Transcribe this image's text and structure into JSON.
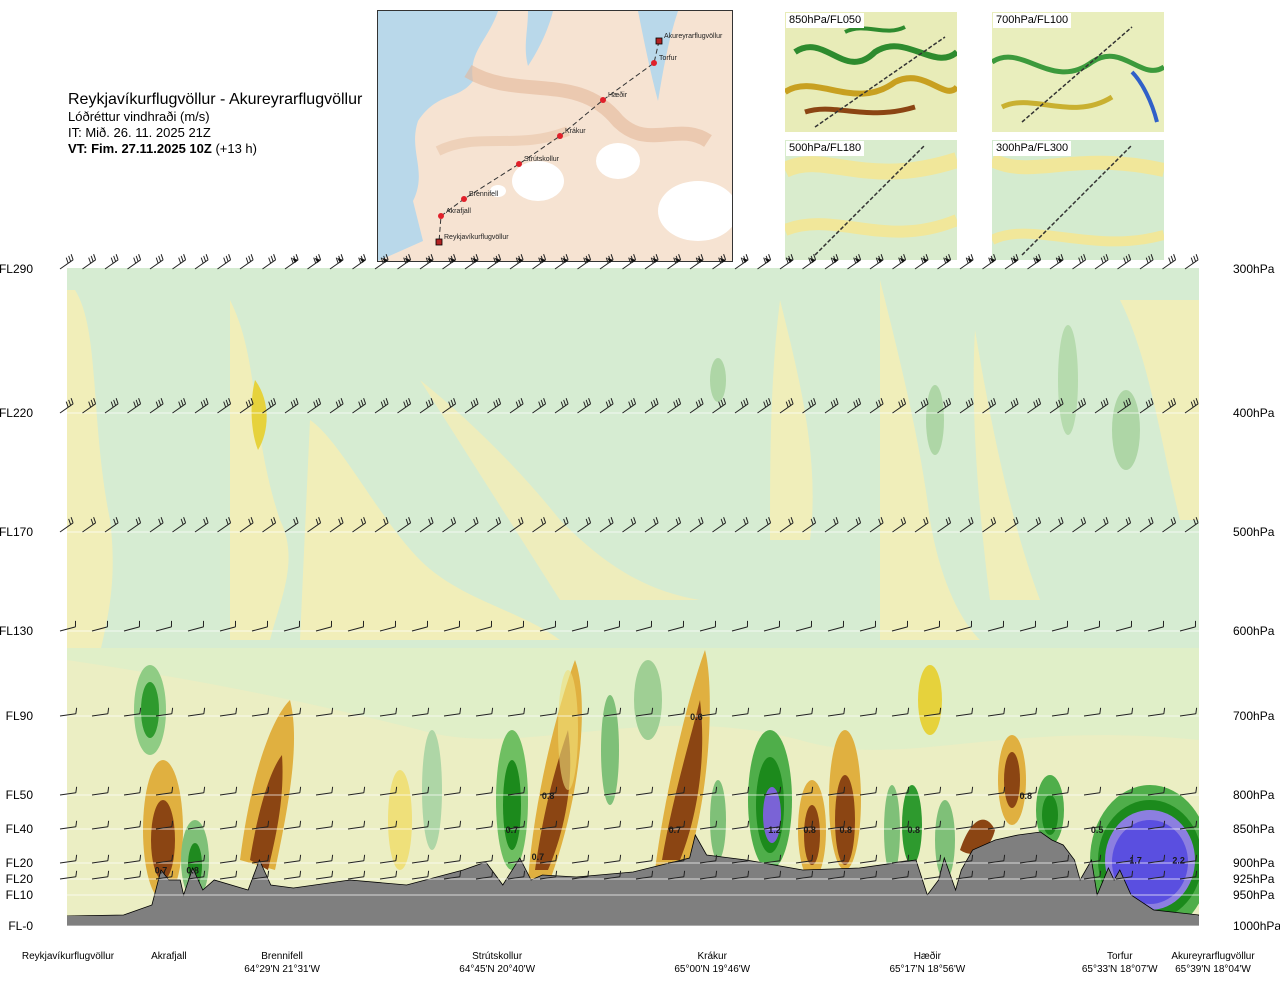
{
  "header": {
    "route": "Reykjavíkurflugvöllur - Akureyrarflugvöllur",
    "variable": "Lóðréttur vindhraði (m/s)",
    "it": "IT: Mið. 26. 11. 2025 21Z",
    "vt_bold": "VT: Fim. 27.11.2025 10Z",
    "vt_suffix": "(+13 h)"
  },
  "route_map": {
    "points": [
      {
        "name": "Akureyrarflugvöllur"
      },
      {
        "name": "Torfur"
      },
      {
        "name": "Hæðir"
      },
      {
        "name": "Krákur"
      },
      {
        "name": "Strútskollur"
      },
      {
        "name": "Brennifell"
      },
      {
        "name": "Akrafjall"
      },
      {
        "name": "Reykjavíkurflugvöllur"
      }
    ]
  },
  "thumbnails": [
    {
      "label": "850hPa/FL050"
    },
    {
      "label": "700hPa/FL100"
    },
    {
      "label": "500hPa/FL180"
    },
    {
      "label": "300hPa/FL300"
    }
  ],
  "chart_data": {
    "type": "heatmap",
    "title": "Lóðréttur vindhraði (m/s)",
    "levels_left": [
      "FL290",
      "FL220",
      "FL170",
      "FL130",
      "FL90",
      "FL50",
      "FL40",
      "FL20",
      "FL20",
      "FL10",
      "FL-0"
    ],
    "levels_right": [
      "300hPa",
      "400hPa",
      "500hPa",
      "600hPa",
      "700hPa",
      "800hPa",
      "850hPa",
      "900hPa",
      "925hPa",
      "950hPa",
      "1000hPa"
    ],
    "pressure_hpa": [
      300,
      400,
      500,
      600,
      700,
      800,
      850,
      900,
      925,
      950,
      1000
    ],
    "locations": [
      {
        "name": "Reykjavíkurflugvöllur",
        "coord": "",
        "pos": 0.0
      },
      {
        "name": "Akrafjall",
        "coord": "",
        "pos": 0.09
      },
      {
        "name": "Brennifell",
        "coord": "64°29'N 21°31'W",
        "pos": 0.19
      },
      {
        "name": "Strútskollur",
        "coord": "64°45'N 20°40'W",
        "pos": 0.38
      },
      {
        "name": "Krákur",
        "coord": "65°00'N 19°46'W",
        "pos": 0.57
      },
      {
        "name": "Hæðir",
        "coord": "65°17'N 18°56'W",
        "pos": 0.76
      },
      {
        "name": "Torfur",
        "coord": "65°33'N 18°07'W",
        "pos": 0.93
      },
      {
        "name": "Akureyrarflugvöllur",
        "coord": "65°39'N 18°04'W",
        "pos": 1.0
      }
    ],
    "value_labels": [
      {
        "text": "0.7",
        "pos": 0.083,
        "hpa": 910
      },
      {
        "text": "0.8",
        "pos": 0.111,
        "hpa": 910
      },
      {
        "text": "0.8",
        "pos": 0.425,
        "hpa": 800
      },
      {
        "text": "0.7",
        "pos": 0.393,
        "hpa": 850
      },
      {
        "text": "0.7",
        "pos": 0.416,
        "hpa": 890
      },
      {
        "text": "0.6",
        "pos": 0.556,
        "hpa": 700
      },
      {
        "text": "0.7",
        "pos": 0.537,
        "hpa": 850
      },
      {
        "text": "1.2",
        "pos": 0.625,
        "hpa": 850
      },
      {
        "text": "0.8",
        "pos": 0.656,
        "hpa": 850
      },
      {
        "text": "0.8",
        "pos": 0.688,
        "hpa": 850
      },
      {
        "text": "0.8",
        "pos": 0.748,
        "hpa": 850
      },
      {
        "text": "0.8",
        "pos": 0.847,
        "hpa": 800
      },
      {
        "text": "0.5",
        "pos": 0.91,
        "hpa": 850
      },
      {
        "text": "1.7",
        "pos": 0.944,
        "hpa": 895
      },
      {
        "text": "2.2",
        "pos": 0.982,
        "hpa": 895
      }
    ]
  }
}
